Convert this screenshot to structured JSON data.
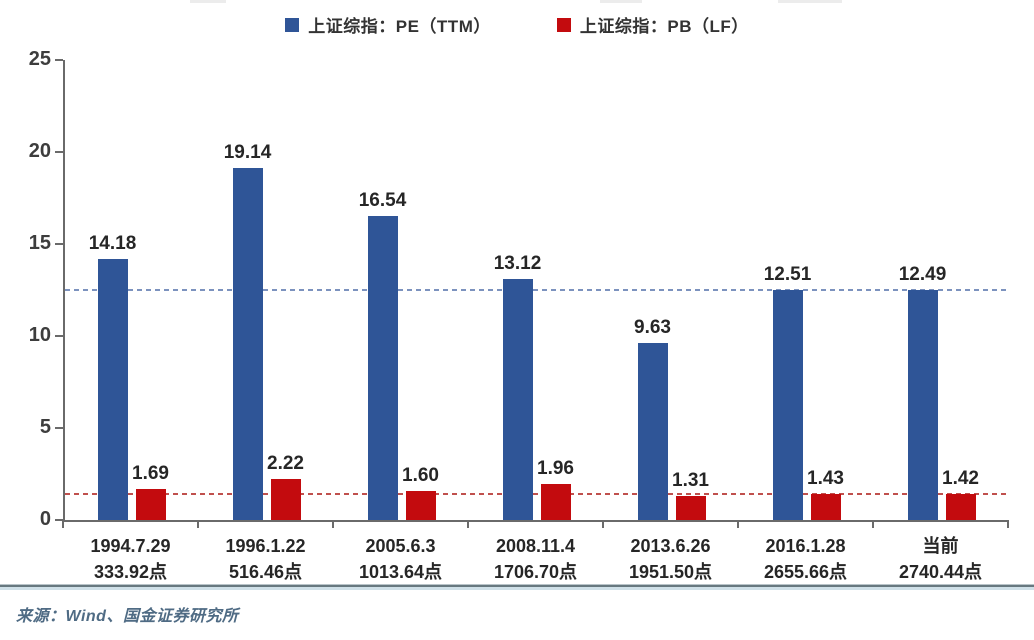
{
  "chart_data": {
    "type": "bar",
    "title": "",
    "xlabel": "",
    "ylabel": "",
    "categories": [
      {
        "date": "1994.7.29",
        "index_level": "333.92点"
      },
      {
        "date": "1996.1.22",
        "index_level": "516.46点"
      },
      {
        "date": "2005.6.3",
        "index_level": "1013.64点"
      },
      {
        "date": "2008.11.4",
        "index_level": "1706.70点"
      },
      {
        "date": "2013.6.26",
        "index_level": "1951.50点"
      },
      {
        "date": "2016.1.28",
        "index_level": "2655.66点"
      },
      {
        "date": "当前",
        "index_level": "2740.44点"
      }
    ],
    "series": [
      {
        "name": "上证综指：PE（TTM）",
        "color": "#2F5597",
        "values": [
          14.18,
          19.14,
          16.54,
          13.12,
          9.63,
          12.51,
          12.49
        ]
      },
      {
        "name": "上证综指：PB（LF）",
        "color": "#C30B0E",
        "values": [
          1.69,
          2.22,
          1.6,
          1.96,
          1.31,
          1.43,
          1.42
        ]
      }
    ],
    "ylim": [
      0,
      25
    ],
    "yticks": [
      0,
      5,
      10,
      15,
      20,
      25
    ],
    "grid": false,
    "legend_position": "top-center",
    "value_label_decimals": 2,
    "reference_lines": [
      {
        "value": 12.49,
        "color": "#7C92BE",
        "style": "dashed",
        "matches_series": "上证综指：PE（TTM）"
      },
      {
        "value": 1.42,
        "color": "#C0504D",
        "style": "dashed",
        "matches_series": "上证综指：PB（LF）"
      }
    ]
  },
  "footer": {
    "source": "来源：Wind、国金证券研究所"
  }
}
